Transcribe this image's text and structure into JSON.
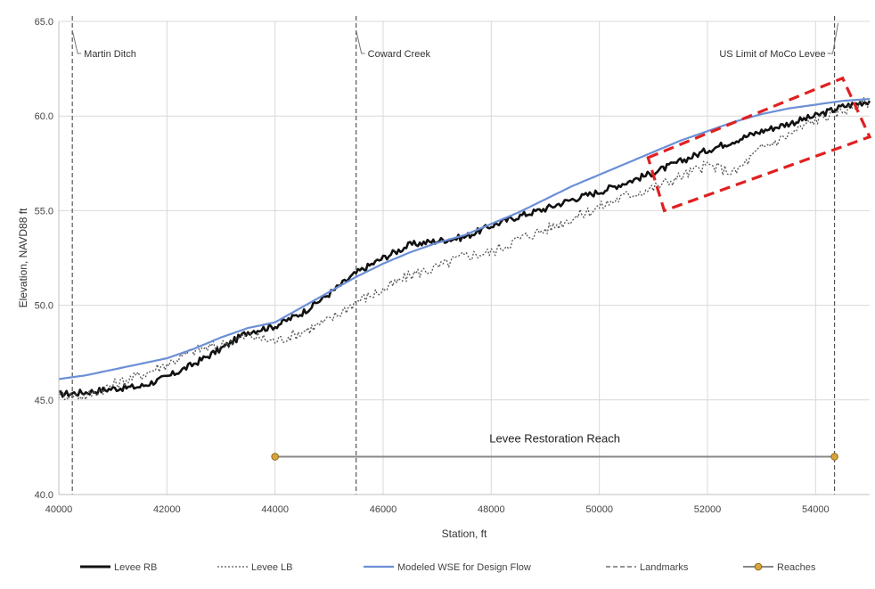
{
  "chart_data": {
    "type": "line",
    "xlabel": "Station, ft",
    "ylabel": "Elevation, NAVD88 ft",
    "xlim": [
      40000,
      55000
    ],
    "ylim": [
      40.0,
      65.0
    ],
    "x_ticks": [
      "40000",
      "42000",
      "44000",
      "46000",
      "48000",
      "50000",
      "52000",
      "54000"
    ],
    "y_ticks": [
      "40.0",
      "45.0",
      "50.0",
      "55.0",
      "60.0",
      "65.0"
    ],
    "grid": true,
    "legend_position": "bottom",
    "series": [
      {
        "name": "Levee RB",
        "color": "#111111",
        "style": "solid-thick",
        "x": [
          40000,
          40500,
          41000,
          41500,
          42000,
          42500,
          43000,
          43500,
          44000,
          44500,
          45000,
          45500,
          46000,
          46500,
          47000,
          47500,
          48000,
          48500,
          49000,
          49500,
          50000,
          50500,
          51000,
          51500,
          52000,
          52500,
          53000,
          53500,
          54000,
          54500,
          55000
        ],
        "y": [
          45.3,
          45.4,
          45.6,
          45.7,
          46.2,
          46.9,
          47.7,
          48.6,
          48.9,
          49.6,
          50.6,
          51.7,
          52.5,
          53.2,
          53.4,
          53.6,
          54.2,
          54.7,
          55.1,
          55.6,
          56.0,
          56.5,
          57.0,
          57.6,
          58.2,
          58.7,
          59.2,
          59.6,
          60.0,
          60.5,
          60.8
        ]
      },
      {
        "name": "Levee LB",
        "color": "#555555",
        "style": "dotted",
        "x": [
          40000,
          40500,
          41000,
          41500,
          42000,
          42500,
          43000,
          43500,
          44000,
          44500,
          45000,
          45500,
          46000,
          46500,
          47000,
          47500,
          48000,
          48500,
          49000,
          49500,
          50000,
          50500,
          51000,
          51500,
          52000,
          52500,
          53000,
          53500,
          54000,
          54500,
          55000
        ],
        "y": [
          45.3,
          45.2,
          45.8,
          46.3,
          46.9,
          47.6,
          47.9,
          48.4,
          48.1,
          48.6,
          49.2,
          50.2,
          50.8,
          51.6,
          52.0,
          52.6,
          52.8,
          53.5,
          54.0,
          54.6,
          55.2,
          55.8,
          56.2,
          56.8,
          57.4,
          57.0,
          58.3,
          59.0,
          59.8,
          60.3,
          60.8
        ]
      },
      {
        "name": "Modeled WSE for Design Flow",
        "color": "#6b8fd6",
        "style": "solid",
        "x": [
          40000,
          40500,
          41000,
          41500,
          42000,
          42500,
          43000,
          43500,
          44000,
          44500,
          45000,
          45500,
          46000,
          46500,
          47000,
          47500,
          48000,
          48500,
          49000,
          49500,
          50000,
          50500,
          51000,
          51500,
          52000,
          52500,
          53000,
          53500,
          54000,
          54500,
          55000
        ],
        "y": [
          46.1,
          46.3,
          46.6,
          46.9,
          47.2,
          47.7,
          48.3,
          48.8,
          49.1,
          49.9,
          50.7,
          51.5,
          52.2,
          52.8,
          53.3,
          53.7,
          54.3,
          54.9,
          55.6,
          56.3,
          56.9,
          57.5,
          58.1,
          58.7,
          59.2,
          59.7,
          60.1,
          60.4,
          60.6,
          60.8,
          60.9
        ]
      }
    ],
    "landmarks": {
      "name": "Landmarks",
      "color": "#555555",
      "items": [
        {
          "x": 40250,
          "label": "Martin Ditch"
        },
        {
          "x": 45500,
          "label": "Coward Creek"
        },
        {
          "x": 54350,
          "label": "US Limit of MoCo Levee"
        }
      ]
    },
    "reaches": {
      "name": "Reaches",
      "color": "#888888",
      "marker_color": "#d9a53a",
      "x": [
        44000,
        54350
      ],
      "y": [
        42.0,
        42.0
      ],
      "label": "Levee Restoration Reach"
    },
    "highlight_box": {
      "color": "#e02020",
      "corners": [
        [
          50900,
          57.8
        ],
        [
          54500,
          62.0
        ],
        [
          55000,
          58.9
        ],
        [
          51200,
          55.0
        ]
      ]
    }
  }
}
